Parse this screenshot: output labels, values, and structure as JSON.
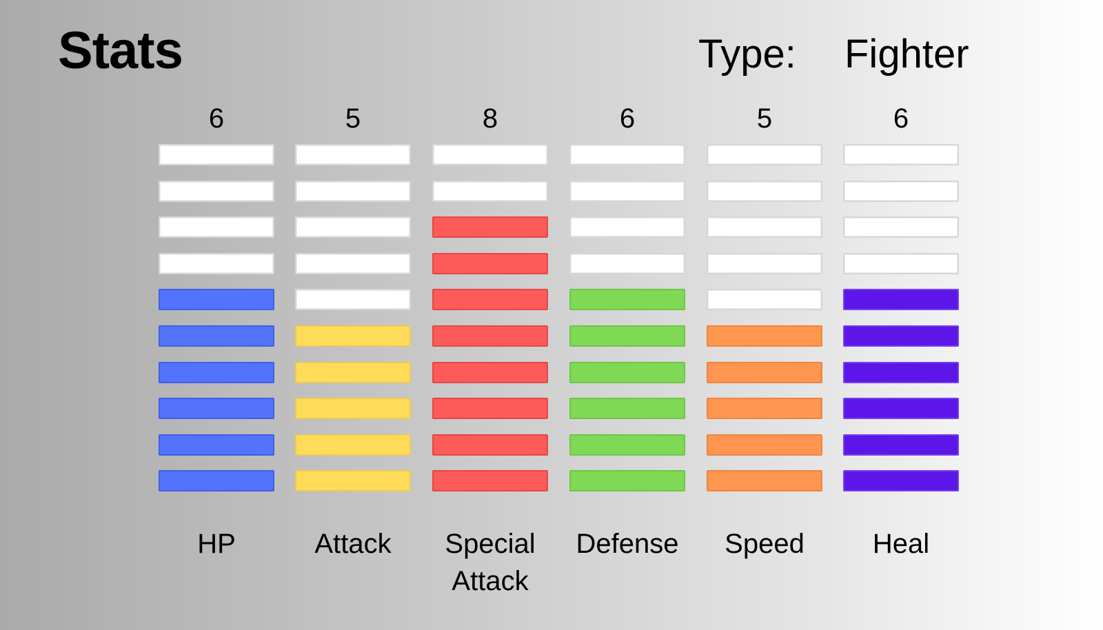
{
  "header": {
    "title": "Stats",
    "type_label": "Type:",
    "type_value": "Fighter"
  },
  "stats": {
    "max_level": 10,
    "items": [
      {
        "label": "HP",
        "value": 6,
        "color": "#5473fd",
        "border": "#3f5fe6"
      },
      {
        "label": "Attack",
        "value": 5,
        "color": "#fedb59",
        "border": "#eccb52"
      },
      {
        "label": "Special Attack",
        "value": 8,
        "color": "#fd5a5a",
        "border": "#e64646"
      },
      {
        "label": "Defense",
        "value": 6,
        "color": "#7fd955",
        "border": "#6fc646"
      },
      {
        "label": "Speed",
        "value": 5,
        "color": "#fe9650",
        "border": "#ed8540"
      },
      {
        "label": "Heal",
        "value": 6,
        "color": "#5d16e8",
        "border": "#7440f2"
      }
    ]
  }
}
